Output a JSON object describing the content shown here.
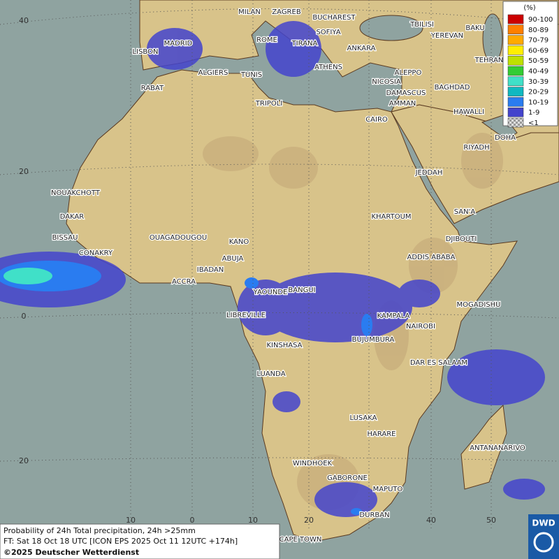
{
  "legend": {
    "title": "(%)",
    "items": [
      {
        "label": "90-100",
        "color": "#cc0000"
      },
      {
        "label": "80-89",
        "color": "#ff7f00"
      },
      {
        "label": "70-79",
        "color": "#ffaa00"
      },
      {
        "label": "60-69",
        "color": "#ffee00"
      },
      {
        "label": "50-59",
        "color": "#bfe000"
      },
      {
        "label": "40-49",
        "color": "#33cc33"
      },
      {
        "label": "30-39",
        "color": "#40e0c8"
      },
      {
        "label": "20-29",
        "color": "#10b8c0"
      },
      {
        "label": "10-19",
        "color": "#2a7cf0"
      },
      {
        "label": "1-9",
        "color": "#4444cc"
      },
      {
        "label": "<1",
        "color": "#bbbbbb"
      }
    ]
  },
  "grid_labels": {
    "left": [
      "40",
      "20",
      "0",
      "20"
    ],
    "bottom": [
      "10",
      "0",
      "10",
      "20",
      "40",
      "50"
    ]
  },
  "cities": [
    "MILAN",
    "ZAGREB",
    "BUCHAREST",
    "SOFIYA",
    "ROME",
    "TIRANA",
    "ANKARA",
    "TBILISI",
    "BAKU",
    "YEREVAN",
    "TEHRAN",
    "MADRID",
    "LISBON",
    "ALGIERS",
    "TUNIS",
    "ATHENS",
    "ALEPPO",
    "NICOSIA",
    "RABAT",
    "BAGHDAD",
    "DAMASCUS",
    "TRIPOLI",
    "AMMAN",
    "HAWALLI",
    "CAIRO",
    "DOHA",
    "RIYADH",
    "JEDDAH",
    "NOUAKCHOTT",
    "DAKAR",
    "KHARTOUM",
    "SAN'A",
    "BISSAU",
    "DJIBOUTI",
    "OUAGADOUGOU",
    "KANO",
    "CONAKRY",
    "ABUJA",
    "ADDIS ABABA",
    "IBADAN",
    "ACCRA",
    "YAOUNDE",
    "BANGUI",
    "MOGADISHU",
    "LIBREVILLE",
    "KAMPALA",
    "NAIROBI",
    "BUJUMBURA",
    "KINSHASA",
    "DAR ES SALAAM",
    "LUANDA",
    "LUSAKA",
    "HARARE",
    "ANTANANARIVO",
    "WINDHOEK",
    "GABORONE",
    "MAPUTO",
    "DURBAN",
    "CAPE TOWN"
  ],
  "caption": {
    "line1": "Probability of 24h Total precipitation, 24h >25mm",
    "line2": "FT: Sat 18 Oct 18 UTC [ICON EPS 2025 Oct 11 12UTC +174h]",
    "line3": "©2025 Deutscher Wetterdienst"
  },
  "logo": "DWD"
}
